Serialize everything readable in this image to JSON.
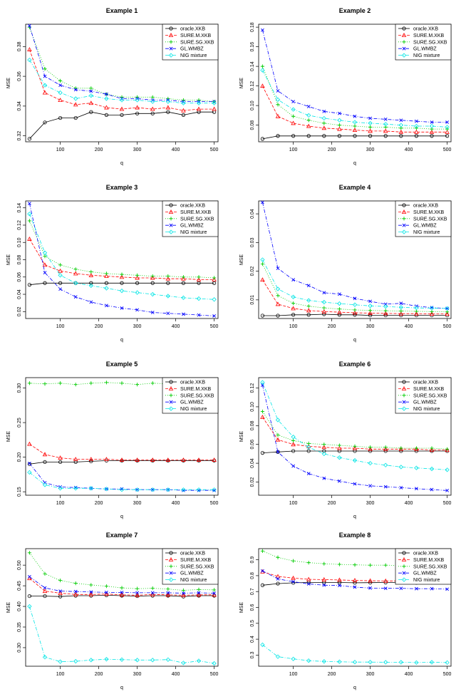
{
  "figure": {
    "x": [
      20,
      60,
      100,
      140,
      180,
      220,
      260,
      300,
      340,
      380,
      420,
      460,
      500
    ],
    "series_names": [
      "oracle.XKB",
      "SURE.M.XKB",
      "SURE.SG.XKB",
      "GL.WMBZ",
      "NIG mixture"
    ],
    "series_colors": [
      "#000000",
      "#ff0000",
      "#00cc00",
      "#0000ff",
      "#00e5e5"
    ],
    "series_markers": [
      "circle",
      "triangle",
      "plus",
      "cross",
      "diamond"
    ]
  },
  "chart_data": [
    {
      "type": "line",
      "title": "Example 1",
      "xlabel": "q",
      "ylabel": "MSE",
      "xlim": [
        10,
        510
      ],
      "ylim": [
        0.316,
        0.395
      ],
      "xticks": [
        100,
        200,
        300,
        400,
        500
      ],
      "xtick_labels": [
        "100",
        "200",
        "300",
        "400",
        "500"
      ],
      "yticks": [
        0.32,
        0.34,
        0.36,
        0.38
      ],
      "ytick_labels": [
        "0.32",
        "0.34",
        "0.36",
        "0.38"
      ],
      "series": [
        {
          "name": "oracle.XKB",
          "values": [
            0.318,
            0.329,
            0.332,
            0.332,
            0.336,
            0.334,
            0.334,
            0.335,
            0.335,
            0.336,
            0.334,
            0.336,
            0.336
          ]
        },
        {
          "name": "SURE.M.XKB",
          "values": [
            0.378,
            0.349,
            0.344,
            0.341,
            0.342,
            0.339,
            0.338,
            0.339,
            0.338,
            0.339,
            0.337,
            0.338,
            0.338
          ]
        },
        {
          "name": "SURE.SG.XKB",
          "values": [
            0.393,
            0.365,
            0.357,
            0.352,
            0.352,
            0.348,
            0.346,
            0.346,
            0.346,
            0.345,
            0.344,
            0.344,
            0.343
          ]
        },
        {
          "name": "GL.WMBZ",
          "values": [
            0.394,
            0.36,
            0.354,
            0.351,
            0.35,
            0.348,
            0.345,
            0.345,
            0.344,
            0.344,
            0.343,
            0.343,
            0.343
          ]
        },
        {
          "name": "NIG mixture",
          "values": [
            0.371,
            0.354,
            0.349,
            0.345,
            0.347,
            0.345,
            0.344,
            0.344,
            0.343,
            0.343,
            0.342,
            0.342,
            0.342
          ]
        }
      ]
    },
    {
      "type": "line",
      "title": "Example 2",
      "xlabel": "q",
      "ylabel": "MSE",
      "xlim": [
        10,
        510
      ],
      "ylim": [
        0.063,
        0.183
      ],
      "xticks": [
        100,
        200,
        300,
        400,
        500
      ],
      "xtick_labels": [
        "100",
        "200",
        "300",
        "400",
        "500"
      ],
      "yticks": [
        0.08,
        0.1,
        0.12,
        0.14,
        0.16,
        0.18
      ],
      "ytick_labels": [
        "0.08",
        "0.10",
        "0.12",
        "0.14",
        "0.16",
        "0.18"
      ],
      "series": [
        {
          "name": "oracle.XKB",
          "values": [
            0.066,
            0.069,
            0.069,
            0.069,
            0.069,
            0.069,
            0.069,
            0.069,
            0.069,
            0.069,
            0.069,
            0.069,
            0.069
          ]
        },
        {
          "name": "SURE.M.XKB",
          "values": [
            0.12,
            0.089,
            0.082,
            0.079,
            0.077,
            0.076,
            0.075,
            0.074,
            0.074,
            0.073,
            0.073,
            0.073,
            0.073
          ]
        },
        {
          "name": "SURE.SG.XKB",
          "values": [
            0.14,
            0.101,
            0.089,
            0.085,
            0.082,
            0.08,
            0.079,
            0.078,
            0.078,
            0.077,
            0.077,
            0.076,
            0.076
          ]
        },
        {
          "name": "GL.WMBZ",
          "values": [
            0.177,
            0.115,
            0.104,
            0.099,
            0.094,
            0.092,
            0.089,
            0.087,
            0.086,
            0.085,
            0.084,
            0.083,
            0.083
          ]
        },
        {
          "name": "NIG mixture",
          "values": [
            0.136,
            0.106,
            0.096,
            0.09,
            0.087,
            0.085,
            0.083,
            0.082,
            0.081,
            0.08,
            0.079,
            0.079,
            0.078
          ]
        }
      ]
    },
    {
      "type": "line",
      "title": "Example 3",
      "xlabel": "q",
      "ylabel": "MSE",
      "xlim": [
        10,
        510
      ],
      "ylim": [
        0.012,
        0.148
      ],
      "xticks": [
        100,
        200,
        300,
        400,
        500
      ],
      "xtick_labels": [
        "100",
        "200",
        "300",
        "400",
        "500"
      ],
      "yticks": [
        0.02,
        0.04,
        0.06,
        0.08,
        0.1,
        0.12,
        0.14
      ],
      "ytick_labels": [
        "0.02",
        "0.04",
        "0.06",
        "0.08",
        "0.10",
        "0.12",
        "0.14"
      ],
      "series": [
        {
          "name": "oracle.XKB",
          "values": [
            0.051,
            0.053,
            0.053,
            0.053,
            0.053,
            0.053,
            0.053,
            0.053,
            0.053,
            0.053,
            0.053,
            0.053,
            0.053
          ]
        },
        {
          "name": "SURE.M.XKB",
          "values": [
            0.104,
            0.074,
            0.067,
            0.064,
            0.062,
            0.061,
            0.06,
            0.059,
            0.059,
            0.058,
            0.058,
            0.057,
            0.057
          ]
        },
        {
          "name": "SURE.SG.XKB",
          "values": [
            0.125,
            0.084,
            0.074,
            0.069,
            0.066,
            0.064,
            0.063,
            0.062,
            0.061,
            0.061,
            0.06,
            0.06,
            0.059
          ]
        },
        {
          "name": "GL.WMBZ",
          "values": [
            0.145,
            0.065,
            0.046,
            0.037,
            0.031,
            0.027,
            0.024,
            0.022,
            0.019,
            0.018,
            0.017,
            0.016,
            0.015
          ]
        },
        {
          "name": "NIG mixture",
          "values": [
            0.133,
            0.088,
            0.062,
            0.053,
            0.05,
            0.047,
            0.044,
            0.042,
            0.04,
            0.038,
            0.036,
            0.035,
            0.034
          ]
        }
      ]
    },
    {
      "type": "line",
      "title": "Example 4",
      "xlabel": "q",
      "ylabel": "MSE",
      "xlim": [
        10,
        510
      ],
      "ylim": [
        0.0035,
        0.0445
      ],
      "xticks": [
        100,
        200,
        300,
        400,
        500
      ],
      "xtick_labels": [
        "100",
        "200",
        "300",
        "400",
        "500"
      ],
      "yticks": [
        0.01,
        0.02,
        0.03,
        0.04
      ],
      "ytick_labels": [
        "0.01",
        "0.02",
        "0.03",
        "0.04"
      ],
      "series": [
        {
          "name": "oracle.XKB",
          "values": [
            0.0045,
            0.0045,
            0.0048,
            0.0048,
            0.005,
            0.0048,
            0.0048,
            0.0046,
            0.0046,
            0.0046,
            0.0046,
            0.0046,
            0.0046
          ]
        },
        {
          "name": "SURE.M.XKB",
          "values": [
            0.017,
            0.0085,
            0.007,
            0.0063,
            0.0059,
            0.0057,
            0.0055,
            0.0054,
            0.0053,
            0.0052,
            0.0052,
            0.0051,
            0.0051
          ]
        },
        {
          "name": "SURE.SG.XKB",
          "values": [
            0.0225,
            0.0115,
            0.0088,
            0.0078,
            0.0072,
            0.0068,
            0.0065,
            0.0063,
            0.0062,
            0.0061,
            0.006,
            0.0059,
            0.0058
          ]
        },
        {
          "name": "GL.WMBZ",
          "values": [
            0.044,
            0.021,
            0.017,
            0.015,
            0.0125,
            0.012,
            0.0105,
            0.0095,
            0.0085,
            0.0088,
            0.0078,
            0.0073,
            0.007
          ]
        },
        {
          "name": "NIG mixture",
          "values": [
            0.024,
            0.0138,
            0.011,
            0.0098,
            0.0092,
            0.0087,
            0.0083,
            0.0079,
            0.0077,
            0.0074,
            0.0072,
            0.0071,
            0.007
          ]
        }
      ]
    },
    {
      "type": "line",
      "title": "Example 5",
      "xlabel": "q",
      "ylabel": "MSE",
      "xlim": [
        10,
        510
      ],
      "ylim": [
        0.145,
        0.315
      ],
      "xticks": [
        100,
        200,
        300,
        400,
        500
      ],
      "xtick_labels": [
        "100",
        "200",
        "300",
        "400",
        "500"
      ],
      "yticks": [
        0.15,
        0.2,
        0.25,
        0.3
      ],
      "ytick_labels": [
        "0.15",
        "0.20",
        "0.25",
        "0.30"
      ],
      "series": [
        {
          "name": "oracle.XKB",
          "values": [
            0.19,
            0.193,
            0.193,
            0.193,
            0.194,
            0.195,
            0.195,
            0.195,
            0.195,
            0.195,
            0.195,
            0.195,
            0.195
          ]
        },
        {
          "name": "SURE.M.XKB",
          "values": [
            0.219,
            0.204,
            0.199,
            0.197,
            0.197,
            0.197,
            0.196,
            0.196,
            0.196,
            0.196,
            0.196,
            0.196,
            0.196
          ]
        },
        {
          "name": "SURE.SG.XKB",
          "values": [
            0.307,
            0.306,
            0.307,
            0.305,
            0.307,
            0.308,
            0.307,
            0.305,
            0.307,
            0.306,
            0.305,
            0.305,
            0.306
          ]
        },
        {
          "name": "GL.WMBZ",
          "values": [
            0.191,
            0.163,
            0.157,
            0.156,
            0.155,
            0.154,
            0.154,
            0.153,
            0.153,
            0.153,
            0.152,
            0.152,
            0.152
          ]
        },
        {
          "name": "NIG mixture",
          "values": [
            0.178,
            0.16,
            0.155,
            0.155,
            0.155,
            0.154,
            0.153,
            0.153,
            0.153,
            0.153,
            0.153,
            0.153,
            0.153
          ]
        }
      ]
    },
    {
      "type": "line",
      "title": "Example 6",
      "xlabel": "q",
      "ylabel": "MSE",
      "xlim": [
        10,
        510
      ],
      "ylim": [
        0.006,
        0.131
      ],
      "xticks": [
        100,
        200,
        300,
        400,
        500
      ],
      "xtick_labels": [
        "100",
        "200",
        "300",
        "400",
        "500"
      ],
      "yticks": [
        0.02,
        0.04,
        0.06,
        0.08,
        0.1,
        0.12
      ],
      "ytick_labels": [
        "0.02",
        "0.04",
        "0.06",
        "0.08",
        "0.10",
        "0.12"
      ],
      "series": [
        {
          "name": "oracle.XKB",
          "values": [
            0.051,
            0.052,
            0.053,
            0.053,
            0.053,
            0.053,
            0.053,
            0.053,
            0.053,
            0.053,
            0.053,
            0.053,
            0.053
          ]
        },
        {
          "name": "SURE.M.XKB",
          "values": [
            0.089,
            0.065,
            0.06,
            0.058,
            0.057,
            0.056,
            0.056,
            0.055,
            0.055,
            0.055,
            0.055,
            0.054,
            0.054
          ]
        },
        {
          "name": "SURE.SG.XKB",
          "values": [
            0.095,
            0.07,
            0.064,
            0.061,
            0.06,
            0.059,
            0.058,
            0.057,
            0.057,
            0.056,
            0.056,
            0.056,
            0.055
          ]
        },
        {
          "name": "GL.WMBZ",
          "values": [
            0.123,
            0.052,
            0.037,
            0.029,
            0.024,
            0.021,
            0.018,
            0.016,
            0.015,
            0.014,
            0.013,
            0.012,
            0.011
          ]
        },
        {
          "name": "NIG mixture",
          "values": [
            0.126,
            0.086,
            0.068,
            0.057,
            0.05,
            0.046,
            0.043,
            0.04,
            0.038,
            0.036,
            0.035,
            0.034,
            0.033
          ]
        }
      ]
    },
    {
      "type": "line",
      "title": "Example 7",
      "xlabel": "q",
      "ylabel": "MSE",
      "xlim": [
        10,
        510
      ],
      "ylim": [
        0.255,
        0.54
      ],
      "xticks": [
        100,
        200,
        300,
        400,
        500
      ],
      "xtick_labels": [
        "100",
        "200",
        "300",
        "400",
        "500"
      ],
      "yticks": [
        0.3,
        0.35,
        0.4,
        0.45,
        0.5
      ],
      "ytick_labels": [
        "0.30",
        "0.35",
        "0.40",
        "0.45",
        "0.50"
      ],
      "series": [
        {
          "name": "oracle.XKB",
          "values": [
            0.425,
            0.425,
            0.424,
            0.426,
            0.426,
            0.427,
            0.426,
            0.425,
            0.426,
            0.426,
            0.424,
            0.426,
            0.426
          ]
        },
        {
          "name": "SURE.M.XKB",
          "values": [
            0.468,
            0.437,
            0.432,
            0.429,
            0.429,
            0.43,
            0.428,
            0.427,
            0.429,
            0.428,
            0.427,
            0.428,
            0.428
          ]
        },
        {
          "name": "SURE.SG.XKB",
          "values": [
            0.53,
            0.479,
            0.463,
            0.456,
            0.452,
            0.449,
            0.445,
            0.443,
            0.444,
            0.442,
            0.439,
            0.441,
            0.44
          ]
        },
        {
          "name": "GL.WMBZ",
          "values": [
            0.472,
            0.445,
            0.437,
            0.436,
            0.435,
            0.434,
            0.434,
            0.433,
            0.433,
            0.433,
            0.432,
            0.433,
            0.432
          ]
        },
        {
          "name": "NIG mixture",
          "values": [
            0.4,
            0.277,
            0.266,
            0.267,
            0.27,
            0.272,
            0.271,
            0.27,
            0.27,
            0.271,
            0.263,
            0.268,
            0.262
          ]
        }
      ]
    },
    {
      "type": "line",
      "title": "Example 8",
      "xlabel": "q",
      "ylabel": "MSE",
      "xlim": [
        10,
        510
      ],
      "ylim": [
        0.23,
        0.97
      ],
      "xticks": [
        100,
        200,
        300,
        400,
        500
      ],
      "xtick_labels": [
        "100",
        "200",
        "300",
        "400",
        "500"
      ],
      "yticks": [
        0.3,
        0.4,
        0.5,
        0.6,
        0.7,
        0.8,
        0.9
      ],
      "ytick_labels": [
        "0.3",
        "0.4",
        "0.5",
        "0.6",
        "0.7",
        "0.8",
        "0.9"
      ],
      "series": [
        {
          "name": "oracle.XKB",
          "values": [
            0.74,
            0.75,
            0.755,
            0.757,
            0.757,
            0.757,
            0.755,
            0.756,
            0.757,
            0.757,
            0.755,
            0.757,
            0.757
          ]
        },
        {
          "name": "SURE.M.XKB",
          "values": [
            0.825,
            0.795,
            0.785,
            0.777,
            0.775,
            0.773,
            0.77,
            0.768,
            0.767,
            0.767,
            0.765,
            0.766,
            0.765
          ]
        },
        {
          "name": "SURE.SG.XKB",
          "values": [
            0.955,
            0.915,
            0.893,
            0.882,
            0.875,
            0.871,
            0.868,
            0.866,
            0.866,
            0.864,
            0.862,
            0.862,
            0.862
          ]
        },
        {
          "name": "GL.WMBZ",
          "values": [
            0.83,
            0.78,
            0.762,
            0.748,
            0.74,
            0.738,
            0.728,
            0.722,
            0.72,
            0.72,
            0.718,
            0.718,
            0.715
          ]
        },
        {
          "name": "NIG mixture",
          "values": [
            0.365,
            0.29,
            0.276,
            0.265,
            0.26,
            0.258,
            0.256,
            0.256,
            0.255,
            0.255,
            0.253,
            0.255,
            0.253
          ]
        }
      ]
    }
  ]
}
